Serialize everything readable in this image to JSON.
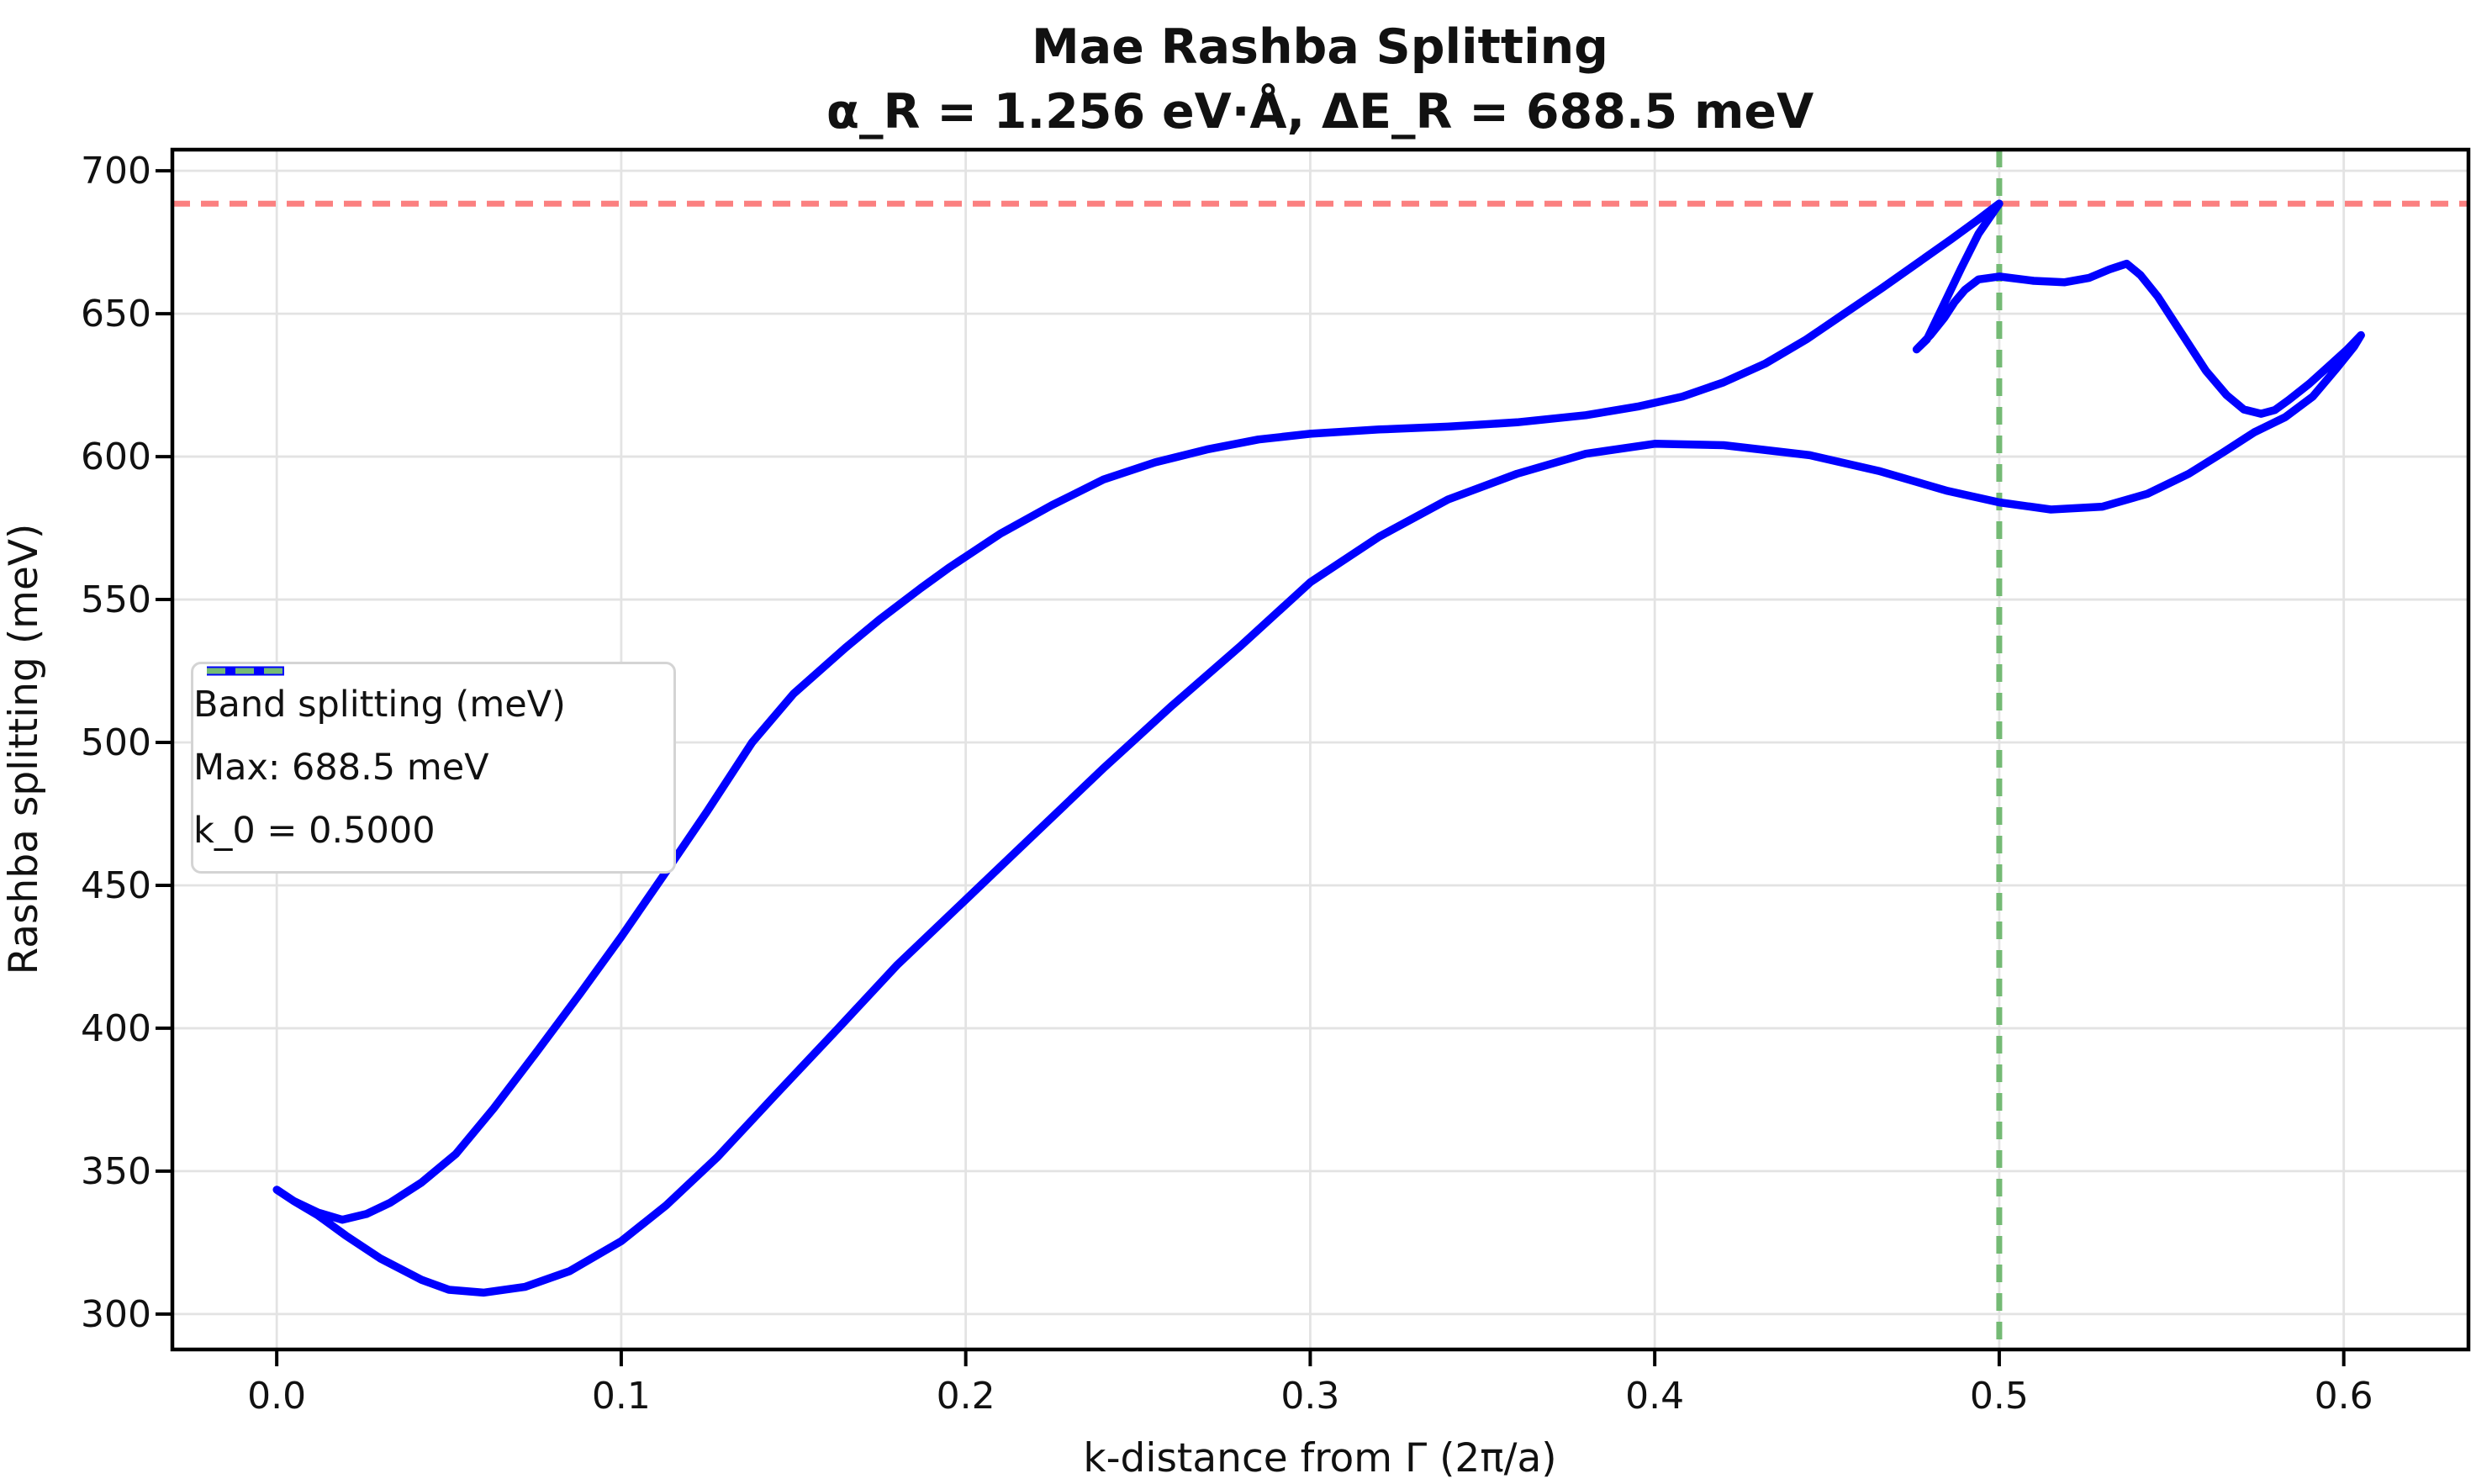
{
  "chart_data": {
    "type": "line",
    "title": "Mae Rashba Splitting",
    "subtitle": "α_R = 1.256 eV·Å, ΔE_R = 688.5 meV",
    "xlabel": "k-distance from Γ (2π/a)",
    "ylabel": "Rashba splitting (meV)",
    "xlim": [
      -0.0303,
      0.6362
    ],
    "ylim": [
      287.6,
      707.4
    ],
    "grid": true,
    "legend_position": "center left",
    "xticks": {
      "values": [
        0.0,
        0.1,
        0.2,
        0.3,
        0.4,
        0.5,
        0.6
      ],
      "labels": [
        "0.0",
        "0.1",
        "0.2",
        "0.3",
        "0.4",
        "0.5",
        "0.6"
      ]
    },
    "yticks": {
      "values": [
        300,
        350,
        400,
        450,
        500,
        550,
        600,
        650,
        700
      ],
      "labels": [
        "300",
        "350",
        "400",
        "450",
        "500",
        "550",
        "600",
        "650",
        "700"
      ]
    },
    "colors": {
      "curve": "#0000ff",
      "max_line": "#fb8080",
      "k0_line": "#74ba74",
      "grid": "#e3e3e3",
      "spine": "#000000"
    },
    "annotations": {
      "max_line": {
        "kind": "hline",
        "y": 688.5,
        "label": "Max: 688.5 meV",
        "style": "dashed"
      },
      "k0_line": {
        "kind": "vline",
        "x": 0.5,
        "label": "k_0 = 0.5000",
        "style": "dashed"
      }
    },
    "series": [
      {
        "name": "Band splitting (meV)",
        "style": "solid",
        "points": [
          [
            0.0,
            343.5
          ],
          [
            0.005,
            339.5
          ],
          [
            0.012,
            334.5
          ],
          [
            0.02,
            327.5
          ],
          [
            0.03,
            319.5
          ],
          [
            0.042,
            312.0
          ],
          [
            0.05,
            308.5
          ],
          [
            0.06,
            307.5
          ],
          [
            0.072,
            309.5
          ],
          [
            0.085,
            315.0
          ],
          [
            0.1,
            325.5
          ],
          [
            0.113,
            338.0
          ],
          [
            0.128,
            355.0
          ],
          [
            0.145,
            377.0
          ],
          [
            0.163,
            400.0
          ],
          [
            0.18,
            422.0
          ],
          [
            0.2,
            445.0
          ],
          [
            0.22,
            468.0
          ],
          [
            0.24,
            491.0
          ],
          [
            0.26,
            513.0
          ],
          [
            0.28,
            534.0
          ],
          [
            0.3,
            556.0
          ],
          [
            0.32,
            572.0
          ],
          [
            0.34,
            585.0
          ],
          [
            0.36,
            594.0
          ],
          [
            0.38,
            601.0
          ],
          [
            0.4,
            604.5
          ],
          [
            0.42,
            604.0
          ],
          [
            0.445,
            600.5
          ],
          [
            0.465,
            595.0
          ],
          [
            0.485,
            588.0
          ],
          [
            0.5,
            584.0
          ],
          [
            0.515,
            581.5
          ],
          [
            0.53,
            582.5
          ],
          [
            0.543,
            587.0
          ],
          [
            0.555,
            594.0
          ],
          [
            0.565,
            601.5
          ],
          [
            0.574,
            608.5
          ],
          [
            0.583,
            613.8
          ],
          [
            0.591,
            621.0
          ],
          [
            0.598,
            631.0
          ],
          [
            0.603,
            638.5
          ],
          [
            0.605,
            642.5
          ],
          [
            0.601,
            637.5
          ],
          [
            0.596,
            632.0
          ],
          [
            0.59,
            625.5
          ],
          [
            0.584,
            619.8
          ],
          [
            0.58,
            616.3
          ],
          [
            0.576,
            615.0
          ],
          [
            0.571,
            616.5
          ],
          [
            0.566,
            621.5
          ],
          [
            0.56,
            630.0
          ],
          [
            0.553,
            643.0
          ],
          [
            0.546,
            656.0
          ],
          [
            0.541,
            663.5
          ],
          [
            0.537,
            667.5
          ],
          [
            0.532,
            665.5
          ],
          [
            0.526,
            662.5
          ],
          [
            0.519,
            661.0
          ],
          [
            0.51,
            661.5
          ],
          [
            0.5,
            663.0
          ],
          [
            0.494,
            662.0
          ],
          [
            0.49,
            658.3
          ],
          [
            0.487,
            654.0
          ],
          [
            0.484,
            648.5
          ],
          [
            0.48,
            642.5
          ],
          [
            0.476,
            637.5
          ],
          [
            0.479,
            641.0
          ],
          [
            0.484,
            653.5
          ],
          [
            0.489,
            666.0
          ],
          [
            0.494,
            678.0
          ],
          [
            0.5,
            688.5
          ],
          [
            0.494,
            683.0
          ],
          [
            0.486,
            676.0
          ],
          [
            0.476,
            667.5
          ],
          [
            0.466,
            659.0
          ],
          [
            0.455,
            650.0
          ],
          [
            0.444,
            641.0
          ],
          [
            0.432,
            632.5
          ],
          [
            0.42,
            626.0
          ],
          [
            0.408,
            621.0
          ],
          [
            0.395,
            617.5
          ],
          [
            0.38,
            614.5
          ],
          [
            0.36,
            612.0
          ],
          [
            0.34,
            610.5
          ],
          [
            0.32,
            609.5
          ],
          [
            0.3,
            608.0
          ],
          [
            0.285,
            606.0
          ],
          [
            0.27,
            602.5
          ],
          [
            0.255,
            598.0
          ],
          [
            0.24,
            592.0
          ],
          [
            0.225,
            583.0
          ],
          [
            0.21,
            573.0
          ],
          [
            0.195,
            561.0
          ],
          [
            0.187,
            554.0
          ],
          [
            0.175,
            543.0
          ],
          [
            0.165,
            533.0
          ],
          [
            0.15,
            517.0
          ],
          [
            0.138,
            500.0
          ],
          [
            0.125,
            476.0
          ],
          [
            0.112,
            453.0
          ],
          [
            0.1,
            432.0
          ],
          [
            0.088,
            412.0
          ],
          [
            0.075,
            391.0
          ],
          [
            0.063,
            372.0
          ],
          [
            0.052,
            356.0
          ],
          [
            0.042,
            346.0
          ],
          [
            0.033,
            339.0
          ],
          [
            0.026,
            335.0
          ],
          [
            0.019,
            333.0
          ],
          [
            0.012,
            335.5
          ],
          [
            0.005,
            339.5
          ],
          [
            0.0,
            343.5
          ]
        ]
      }
    ]
  }
}
